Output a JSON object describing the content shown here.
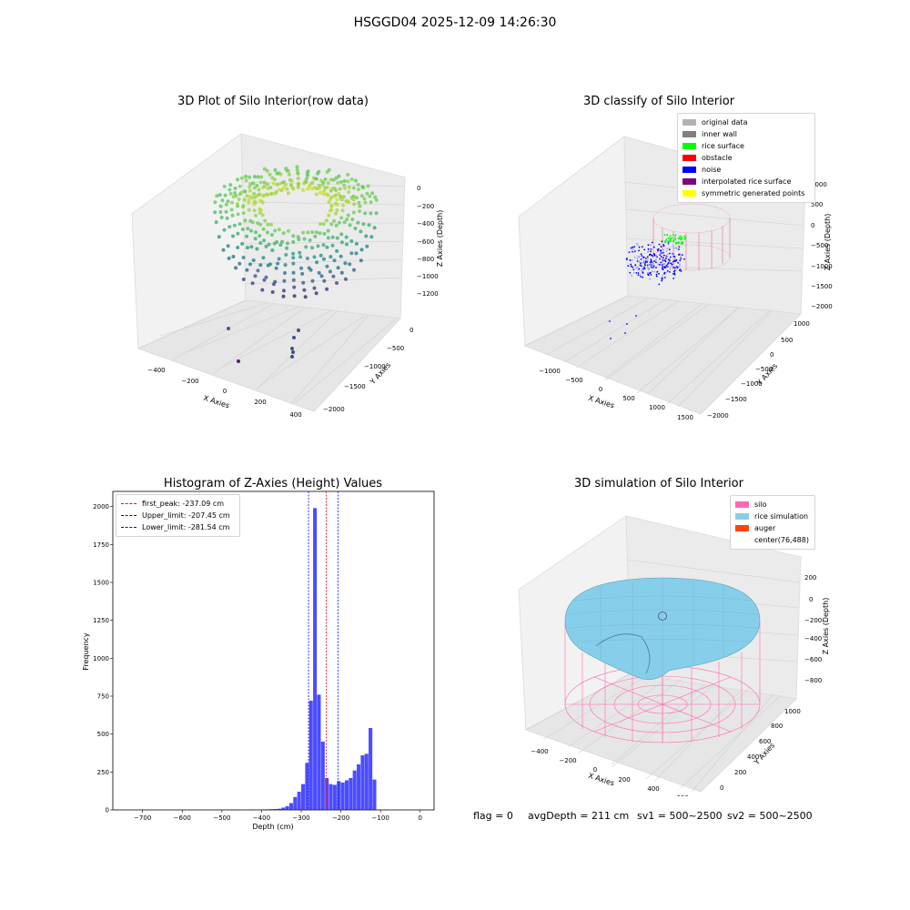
{
  "figure": {
    "suptitle": "HSGGD04 2025-12-09 14:26:30",
    "status": {
      "flag": "flag = 0",
      "avg_depth": "avgDepth = 211 cm",
      "sv1": "sv1 = 500~2500",
      "sv2": "sv2 = 500~2500"
    }
  },
  "chart_data": [
    {
      "type": "scatter3d",
      "title": "3D Plot of Silo Interior(row data)",
      "xlabel": "X Axies",
      "ylabel": "Y Axies",
      "zlabel": "Z Axies (Depth)",
      "x_ticks": [
        "−400",
        "−200",
        "0",
        "200",
        "400"
      ],
      "y_ticks": [
        "0",
        "−500",
        "−1000",
        "−1500",
        "−2000"
      ],
      "z_ticks": [
        "0",
        "−200",
        "−400",
        "−600",
        "−800",
        "−1000",
        "−1200"
      ],
      "grid": true,
      "colormap": "viridis",
      "outlier_points": [
        {
          "x": -240,
          "y": -500,
          "z": -1500
        },
        {
          "x": 240,
          "y": -500,
          "z": -1500
        },
        {
          "x": 200,
          "y": -800,
          "z": -1550
        },
        {
          "x": 200,
          "y": -900,
          "z": -1580
        },
        {
          "x": 210,
          "y": -1000,
          "z": -1600
        },
        {
          "x": 200,
          "y": -1100,
          "z": -1620
        },
        {
          "x": -60,
          "y": -1500,
          "z": -1700
        }
      ]
    },
    {
      "type": "scatter3d",
      "title": "3D classify of Silo Interior",
      "zlabel": "Z Axies (Depth)",
      "xlabel": "X Axies",
      "ylabel": "Y Axies",
      "x_ticks": [
        "−1000",
        "−500",
        "0",
        "500",
        "1000",
        "1500"
      ],
      "y_ticks": [
        "1000",
        "500",
        "0",
        "−500",
        "−1000",
        "−1500",
        "−2000"
      ],
      "z_ticks": [
        "1000",
        "500",
        "0",
        "−500",
        "−1000",
        "−1500",
        "−2000"
      ],
      "grid": true,
      "legend_position": "top-right",
      "legend": [
        {
          "label": "original data",
          "color": "#b3b3b3"
        },
        {
          "label": "inner wall",
          "color": "#808080"
        },
        {
          "label": "rice surface",
          "color": "#00ff00"
        },
        {
          "label": "obstacle",
          "color": "#ff0000"
        },
        {
          "label": "noise",
          "color": "#0000ff"
        },
        {
          "label": "interpolated rice surface",
          "color": "#800080"
        },
        {
          "label": "symmetric generated points",
          "color": "#ffff00"
        }
      ]
    },
    {
      "type": "bar",
      "title": "Histogram of Z-Axies (Height) Values",
      "xlabel": "Depth (cm)",
      "ylabel": "Frequency",
      "xlim": [
        -775,
        35
      ],
      "ylim": [
        0,
        2100
      ],
      "x_ticks": [
        "−700",
        "−600",
        "−500",
        "−400",
        "−300",
        "−200",
        "−100",
        "0"
      ],
      "y_ticks": [
        "0",
        "250",
        "500",
        "750",
        "1000",
        "1250",
        "1500",
        "1750",
        "2000"
      ],
      "bar_color": "#0000ff",
      "bins": [
        [
          -480,
          -470,
          2
        ],
        [
          -430,
          -420,
          3
        ],
        [
          -410,
          -400,
          2
        ],
        [
          -400,
          -390,
          3
        ],
        [
          -390,
          -380,
          4
        ],
        [
          -380,
          -370,
          5
        ],
        [
          -370,
          -360,
          6
        ],
        [
          -360,
          -350,
          8
        ],
        [
          -350,
          -340,
          15
        ],
        [
          -340,
          -330,
          25
        ],
        [
          -330,
          -320,
          45
        ],
        [
          -320,
          -310,
          85
        ],
        [
          -310,
          -300,
          120
        ],
        [
          -300,
          -290,
          170
        ],
        [
          -290,
          -280,
          310
        ],
        [
          -280,
          -270,
          720
        ],
        [
          -270,
          -260,
          1990
        ],
        [
          -260,
          -250,
          760
        ],
        [
          -250,
          -240,
          450
        ],
        [
          -240,
          -230,
          210
        ],
        [
          -230,
          -220,
          170
        ],
        [
          -220,
          -210,
          165
        ],
        [
          -210,
          -200,
          190
        ],
        [
          -200,
          -190,
          180
        ],
        [
          -190,
          -180,
          195
        ],
        [
          -180,
          -170,
          210
        ],
        [
          -170,
          -160,
          260
        ],
        [
          -160,
          -150,
          300
        ],
        [
          -150,
          -140,
          360
        ],
        [
          -140,
          -130,
          370
        ],
        [
          -130,
          -120,
          540
        ],
        [
          -120,
          -110,
          200
        ]
      ],
      "vlines": [
        {
          "label": "first_peak: -237.09 cm",
          "x": -237.09,
          "color": "#ff0000"
        },
        {
          "label": "Upper_limit: -207.45 cm",
          "x": -207.45,
          "color": "#0000ff"
        },
        {
          "label": "Lower_limit: -281.54 cm",
          "x": -281.54,
          "color": "#0000ff"
        }
      ],
      "legend_position": "top-left"
    },
    {
      "type": "surface3d",
      "title": "3D simulation of Silo Interior",
      "xlabel": "X Axies",
      "ylabel": "Y Axies",
      "zlabel": "Z Axies (Depth)",
      "x_ticks": [
        "−400",
        "−200",
        "0",
        "200",
        "400",
        "600"
      ],
      "y_ticks": [
        "0",
        "200",
        "400",
        "600",
        "800",
        "1000"
      ],
      "z_ticks": [
        "200",
        "0",
        "−200",
        "−400",
        "−600",
        "−800"
      ],
      "grid": true,
      "legend_position": "top-right",
      "legend": [
        {
          "label": "silo",
          "color": "#ff69b4"
        },
        {
          "label": "rice simulation",
          "color": "#87ceeb"
        },
        {
          "label": "auger",
          "color": "#ff4500"
        },
        {
          "label": "center(76,488)",
          "color": "#ffffff"
        }
      ]
    }
  ]
}
